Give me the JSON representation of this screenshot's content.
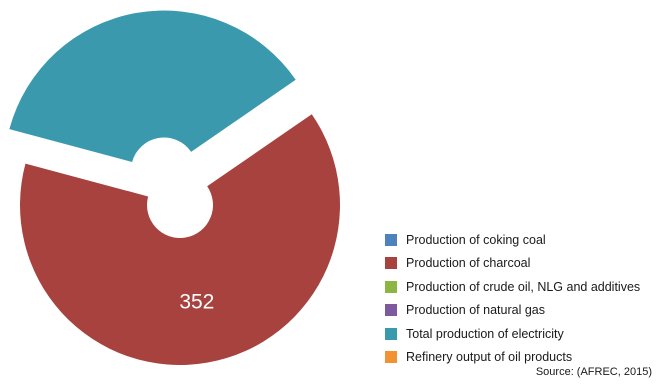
{
  "chart_data": {
    "type": "pie",
    "labels": [
      "Production of coking coal",
      "Production of charcoal",
      "Production of crude oil, NLG and additives",
      "Production of natural gas",
      "Total production of electricity",
      "Refinery output of oil products"
    ],
    "values": [
      0,
      352,
      0,
      0,
      200,
      0
    ],
    "colors": [
      "#4f81bd",
      "#a8423f",
      "#8db543",
      "#7d5a9e",
      "#3a99ad",
      "#f39233"
    ],
    "data_labels": [
      "",
      "352",
      "",
      "",
      "",
      ""
    ],
    "donut_hole": true,
    "exploded": [
      "Total production of electricity"
    ],
    "legend_position": "bottom-right"
  },
  "source": "Source: (AFREC, 2015)"
}
